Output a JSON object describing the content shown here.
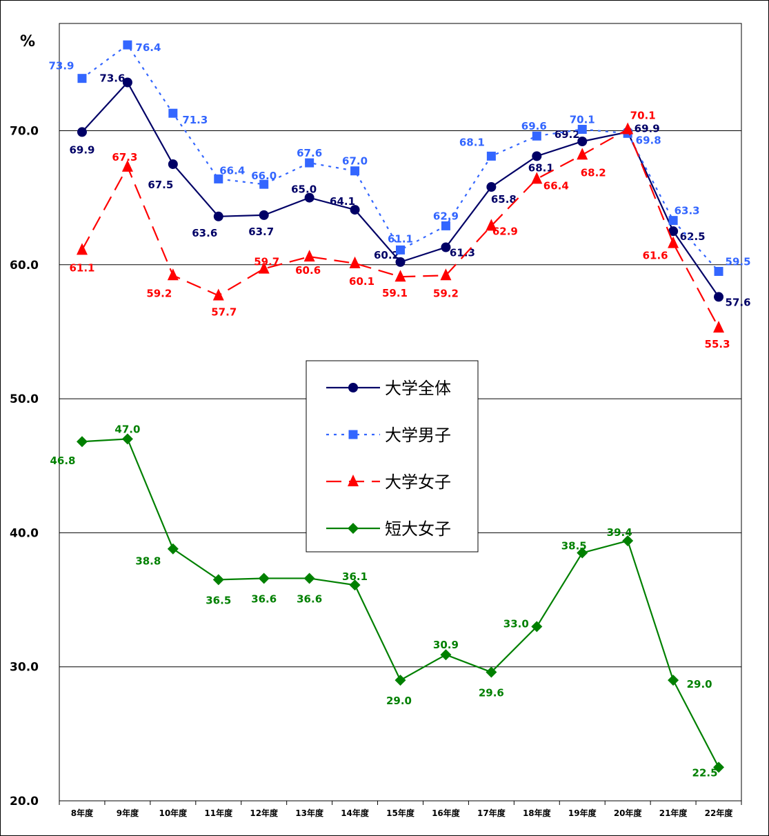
{
  "chart_data": {
    "type": "line",
    "title": "",
    "xlabel": "",
    "ylabel": "%",
    "ylim": [
      20,
      78
    ],
    "yticks": [
      "20.0",
      "30.0",
      "40.0",
      "50.0",
      "60.0",
      "70.0"
    ],
    "grid": true,
    "legend_position": "center",
    "categories": [
      "8年度",
      "9年度",
      "10年度",
      "11年度",
      "12年度",
      "13年度",
      "14年度",
      "15年度",
      "16年度",
      "17年度",
      "18年度",
      "19年度",
      "20年度",
      "21年度",
      "22年度"
    ],
    "series": [
      {
        "name": "大学全体",
        "color": "#000066",
        "line_style": "solid",
        "marker": "circle",
        "values": [
          69.9,
          73.6,
          67.5,
          63.6,
          63.7,
          65.0,
          64.1,
          60.2,
          61.3,
          65.8,
          68.1,
          69.2,
          69.9,
          62.5,
          57.6
        ],
        "labels": [
          "69.9",
          "73.6",
          "67.5",
          "63.6",
          "63.7",
          "65.0",
          "64.1",
          "60.2",
          "61.3",
          "65.8",
          "68.1",
          "69.2",
          "69.9",
          "62.5",
          "57.6"
        ]
      },
      {
        "name": "大学男子",
        "color": "#3366ff",
        "line_style": "dotted",
        "marker": "square",
        "values": [
          73.9,
          76.4,
          71.3,
          66.4,
          66.0,
          67.6,
          67.0,
          61.1,
          62.9,
          68.1,
          69.6,
          70.1,
          69.8,
          63.3,
          59.5
        ],
        "labels": [
          "73.9",
          "76.4",
          "71.3",
          "66.4",
          "66.0",
          "67.6",
          "67.0",
          "61.1",
          "62.9",
          "68.1",
          "69.6",
          "70.1",
          "69.8",
          "63.3",
          "59.5"
        ]
      },
      {
        "name": "大学女子",
        "color": "#ff0000",
        "line_style": "dashed",
        "marker": "triangle",
        "values": [
          61.1,
          67.3,
          59.2,
          57.7,
          59.7,
          60.6,
          60.1,
          59.1,
          59.2,
          62.9,
          66.4,
          68.2,
          70.1,
          61.6,
          55.3
        ],
        "labels": [
          "61.1",
          "67.3",
          "59.2",
          "57.7",
          "59.7",
          "60.6",
          "60.1",
          "59.1",
          "59.2",
          "62.9",
          "66.4",
          "68.2",
          "70.1",
          "61.6",
          "55.3"
        ]
      },
      {
        "name": "短大女子",
        "color": "#008000",
        "line_style": "solid",
        "marker": "diamond",
        "values": [
          46.8,
          47.0,
          38.8,
          36.5,
          36.6,
          36.6,
          36.1,
          29.0,
          30.9,
          29.6,
          33.0,
          38.5,
          39.4,
          29.0,
          22.5
        ],
        "labels": [
          "46.8",
          "47.0",
          "38.8",
          "36.5",
          "36.6",
          "36.6",
          "36.1",
          "29.0",
          "30.9",
          "29.6",
          "33.0",
          "38.5",
          "39.4",
          "29.0",
          "22.5"
        ]
      }
    ]
  }
}
